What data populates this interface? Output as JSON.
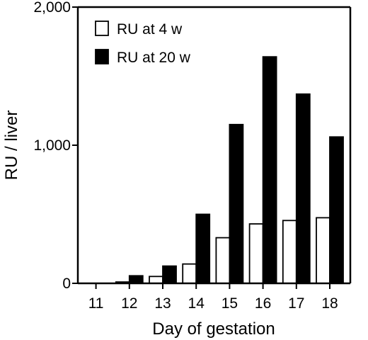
{
  "chart_data": {
    "type": "bar",
    "title": "",
    "xlabel": "Day of gestation",
    "ylabel": "RU / liver",
    "categories": [
      "11",
      "12",
      "13",
      "14",
      "15",
      "16",
      "17",
      "18"
    ],
    "series": [
      {
        "name": "RU at 4 w",
        "color": "#ffffff",
        "values": [
          0,
          10,
          50,
          140,
          330,
          430,
          455,
          475
        ]
      },
      {
        "name": "RU at 20 w",
        "color": "#000000",
        "values": [
          0,
          55,
          125,
          500,
          1150,
          1640,
          1370,
          1060
        ]
      }
    ],
    "ylim": [
      0,
      2000
    ],
    "yticks": [
      {
        "value": 0,
        "label": "0"
      },
      {
        "value": 1000,
        "label": "1,000"
      },
      {
        "value": 2000,
        "label": "2,000"
      }
    ],
    "legend": "top-left",
    "grid": false
  }
}
